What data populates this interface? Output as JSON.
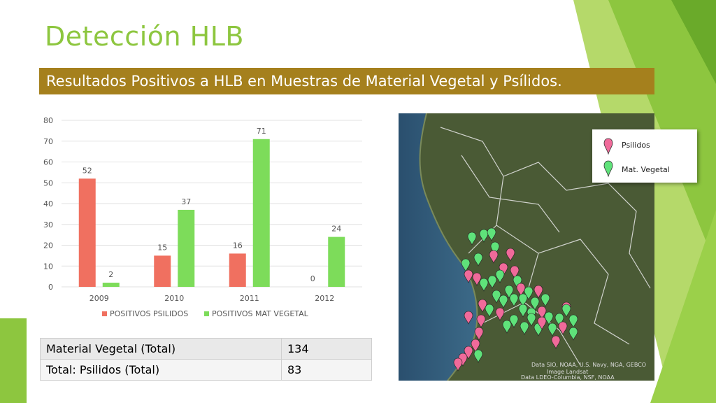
{
  "slide": {
    "title": "Detección HLB",
    "subtitle": "Resultados Positivos a HLB en Muestras de Material Vegetal y Psílidos."
  },
  "colors": {
    "accent_green": "#8dc63f",
    "banner": "#a5801d",
    "psilidos": "#f07060",
    "mat_vegetal": "#7ddc5a"
  },
  "chart_data": {
    "type": "bar",
    "categories": [
      "2009",
      "2010",
      "2011",
      "2012"
    ],
    "series": [
      {
        "name": "POSITIVOS PSILIDOS",
        "values": [
          52,
          15,
          16,
          0
        ],
        "color": "#f07060"
      },
      {
        "name": "POSITIVOS MAT VEGETAL",
        "values": [
          2,
          37,
          71,
          24
        ],
        "color": "#7ddc5a"
      }
    ],
    "yticks": [
      "0",
      "10",
      "20",
      "30",
      "40",
      "50",
      "60",
      "70",
      "80"
    ],
    "ylim": [
      0,
      80
    ],
    "grid": true,
    "legend_position": "bottom",
    "data_labels": true
  },
  "map": {
    "legend": [
      {
        "label": "Psilidos",
        "icon": "pink-map-pin-icon",
        "color": "#f06a9a"
      },
      {
        "label": "Mat. Vegetal",
        "icon": "green-map-pin-icon",
        "color": "#5fe27a"
      }
    ],
    "attribution": [
      "Data SIO, NOAA, U.S. Navy, NGA, GEBCO",
      "Image Landsat",
      "Data LDEO-Columbia, NSF, NOAA"
    ]
  },
  "totals": [
    {
      "label": "Material Vegetal (Total)",
      "value": "134"
    },
    {
      "label": "Total: Psilidos (Total)",
      "value": "83"
    }
  ]
}
